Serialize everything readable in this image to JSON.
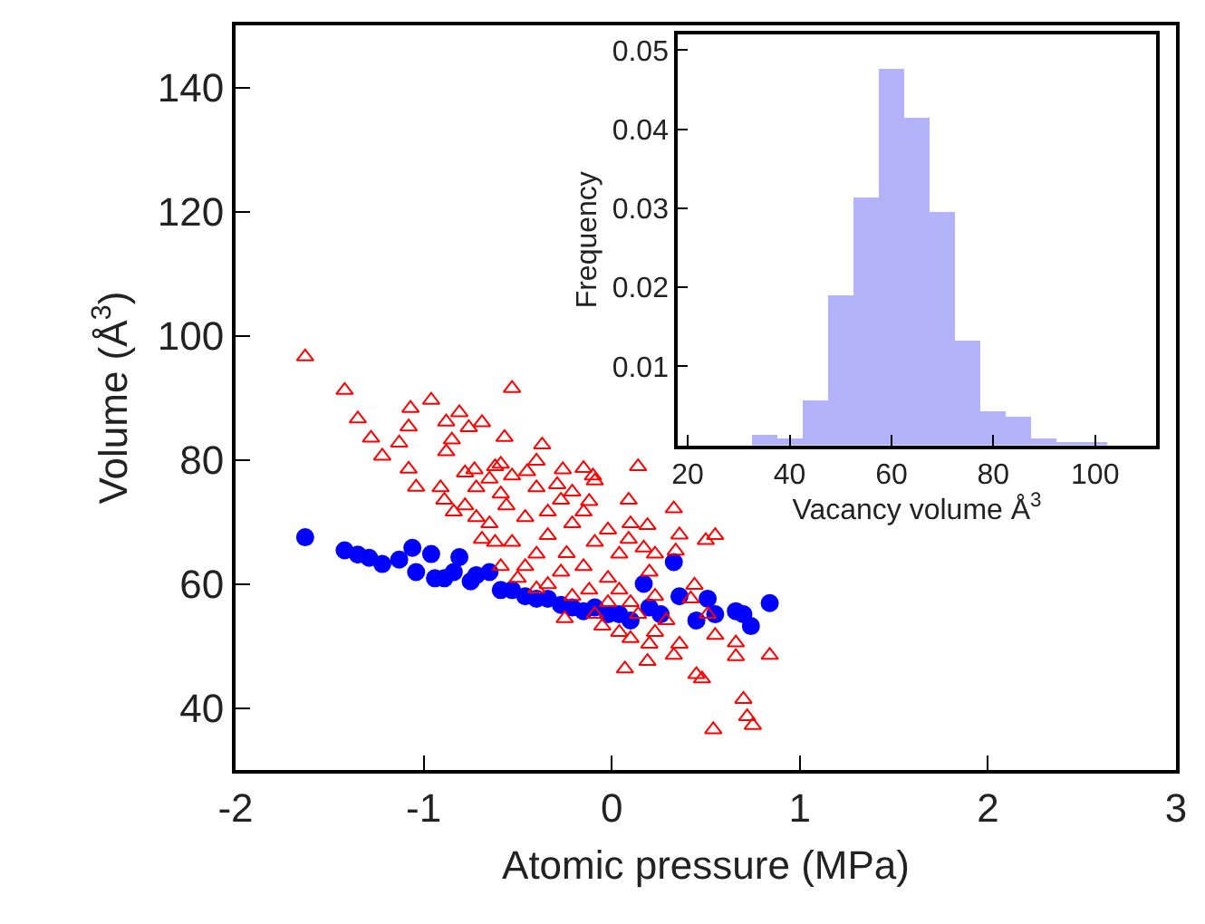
{
  "chart_data": [
    {
      "type": "scatter",
      "xlabel": "Atomic pressure (MPa)",
      "ylabel": "Volume (Å$^{3}$)",
      "xlim": [
        -2,
        3
      ],
      "xticks": [
        -2,
        -1,
        0,
        1,
        2,
        3
      ],
      "ylim": [
        30,
        150
      ],
      "yticks": [
        40,
        60,
        80,
        100,
        120,
        140
      ],
      "series": [
        {
          "color": "#0000ff",
          "marker": "circle",
          "x": [
            -1.63,
            -1.42,
            -1.35,
            -1.29,
            -1.22,
            -1.13,
            -1.06,
            -1.04,
            -0.96,
            -0.94,
            -0.89,
            -0.84,
            -0.81,
            -0.75,
            -0.72,
            -0.65,
            -0.59,
            -0.53,
            -0.46,
            -0.4,
            -0.34,
            -0.27,
            -0.21,
            -0.15,
            -0.09,
            -0.02,
            0.04,
            0.1,
            0.17,
            0.2,
            0.26,
            0.33,
            0.36,
            0.45,
            0.51,
            0.55,
            0.66,
            0.7,
            0.74,
            0.84
          ],
          "values": [
            67.5,
            65.4,
            64.7,
            64.2,
            63.2,
            63.9,
            65.8,
            61.9,
            64.8,
            60.9,
            60.9,
            61.9,
            64.3,
            60.4,
            61.4,
            61.9,
            59.0,
            59.0,
            58.0,
            57.6,
            57.6,
            56.6,
            56.2,
            55.6,
            56.2,
            55.1,
            55.1,
            54.1,
            60.0,
            56.2,
            55.1,
            63.5,
            58.0,
            54.1,
            57.6,
            55.1,
            55.6,
            55.1,
            53.2,
            56.9
          ]
        },
        {
          "color": "#ff0000",
          "marker": "triangle",
          "x": [
            -1.63,
            -1.42,
            -1.35,
            -1.28,
            -1.22,
            -1.07,
            -1.08,
            -1.13,
            -1.08,
            -1.04,
            -0.96,
            -0.88,
            -0.81,
            -0.76,
            -0.69,
            -0.53,
            -0.57,
            -0.85,
            -0.88,
            -0.91,
            -0.89,
            -0.84,
            -0.78,
            -0.62,
            -0.37,
            -0.4,
            -0.45,
            -0.29,
            -0.21,
            -0.15,
            -0.09,
            -0.12,
            0.14,
            0.09,
            0.33,
            0.1,
            0.19,
            0.36,
            0.55,
            0.5,
            0.34,
            0.44,
            0.42,
            0.51,
            0.55,
            0.66,
            0.66,
            0.84,
            0.45,
            0.48,
            0.7,
            0.72,
            0.75,
            0.54,
            0.07,
            0.19,
            0.33,
            -0.25,
            -0.09,
            0.1,
            0.23,
            0.29,
            -0.4,
            -0.5,
            -0.59,
            -0.69,
            -0.65,
            -0.56,
            -0.46,
            -0.34,
            -0.24,
            -0.15,
            -0.02,
            0.04,
            0.1,
            0.23,
            0.2,
            0.04,
            -0.09,
            -0.21,
            -0.34,
            -0.59,
            -0.72,
            -0.78,
            -0.53,
            -0.4,
            -0.27,
            -0.12,
            -0.02,
            0.14,
            0.23,
            -0.02,
            -0.15,
            -0.27,
            -0.4,
            -0.53,
            -0.65,
            -0.73,
            -0.59,
            -0.72,
            -0.62,
            -0.46,
            -0.34,
            -0.21,
            -0.05,
            0.04,
            0.2,
            0.36,
            -0.26,
            -0.1,
            0.09,
            0.17
          ],
          "values": [
            96.6,
            91.2,
            86.6,
            83.5,
            80.6,
            88.3,
            85.3,
            82.7,
            78.5,
            75.6,
            89.6,
            86.1,
            87.6,
            85.2,
            86.0,
            91.5,
            83.6,
            83.2,
            81.3,
            75.5,
            73.5,
            71.6,
            77.9,
            78.9,
            82.4,
            79.8,
            78.1,
            76.0,
            74.8,
            78.6,
            76.6,
            73.3,
            78.9,
            73.5,
            72.1,
            69.7,
            69.4,
            67.9,
            67.8,
            67.0,
            65.3,
            59.8,
            57.6,
            55.1,
            51.7,
            50.5,
            48.3,
            48.5,
            45.4,
            44.7,
            41.4,
            38.6,
            37.2,
            36.5,
            46.3,
            47.5,
            48.5,
            54.4,
            55.1,
            51.2,
            52.2,
            54.1,
            59.2,
            60.9,
            62.8,
            67.2,
            69.7,
            72.6,
            70.7,
            67.8,
            64.9,
            62.8,
            60.9,
            59.0,
            57.0,
            58.0,
            61.9,
            64.8,
            66.7,
            69.7,
            71.6,
            74.5,
            75.5,
            72.6,
            66.7,
            64.8,
            61.9,
            59.0,
            57.0,
            55.1,
            64.8,
            68.7,
            71.6,
            73.5,
            75.5,
            77.4,
            76.9,
            78.4,
            79.3,
            70.7,
            66.7,
            62.8,
            59.9,
            58.0,
            53.2,
            52.2,
            50.3,
            50.3,
            78.4,
            77.4,
            67.2,
            65.8
          ]
        }
      ]
    },
    {
      "type": "histogram",
      "xlabel": "Vacancy volume Å$^{3}$",
      "ylabel": "Frequency",
      "xlim": [
        18,
        112
      ],
      "xticks": [
        20,
        40,
        60,
        80,
        100
      ],
      "ylim": [
        0,
        0.052
      ],
      "yticks": [
        0.01,
        0.02,
        0.03,
        0.04,
        0.05
      ],
      "color": "#b3b3fa",
      "bins": [
        32.5,
        37.5,
        42.5,
        47.5,
        52.5,
        57.5,
        62.5,
        67.5,
        72.5,
        77.5,
        82.5,
        87.5,
        92.5,
        97.5,
        102.5
      ],
      "values": [
        0.0013,
        0.0008,
        0.0057,
        0.019,
        0.0314,
        0.0476,
        0.0414,
        0.0295,
        0.0132,
        0.0043,
        0.0036,
        0.0008,
        0.0004,
        0.0004
      ]
    }
  ]
}
